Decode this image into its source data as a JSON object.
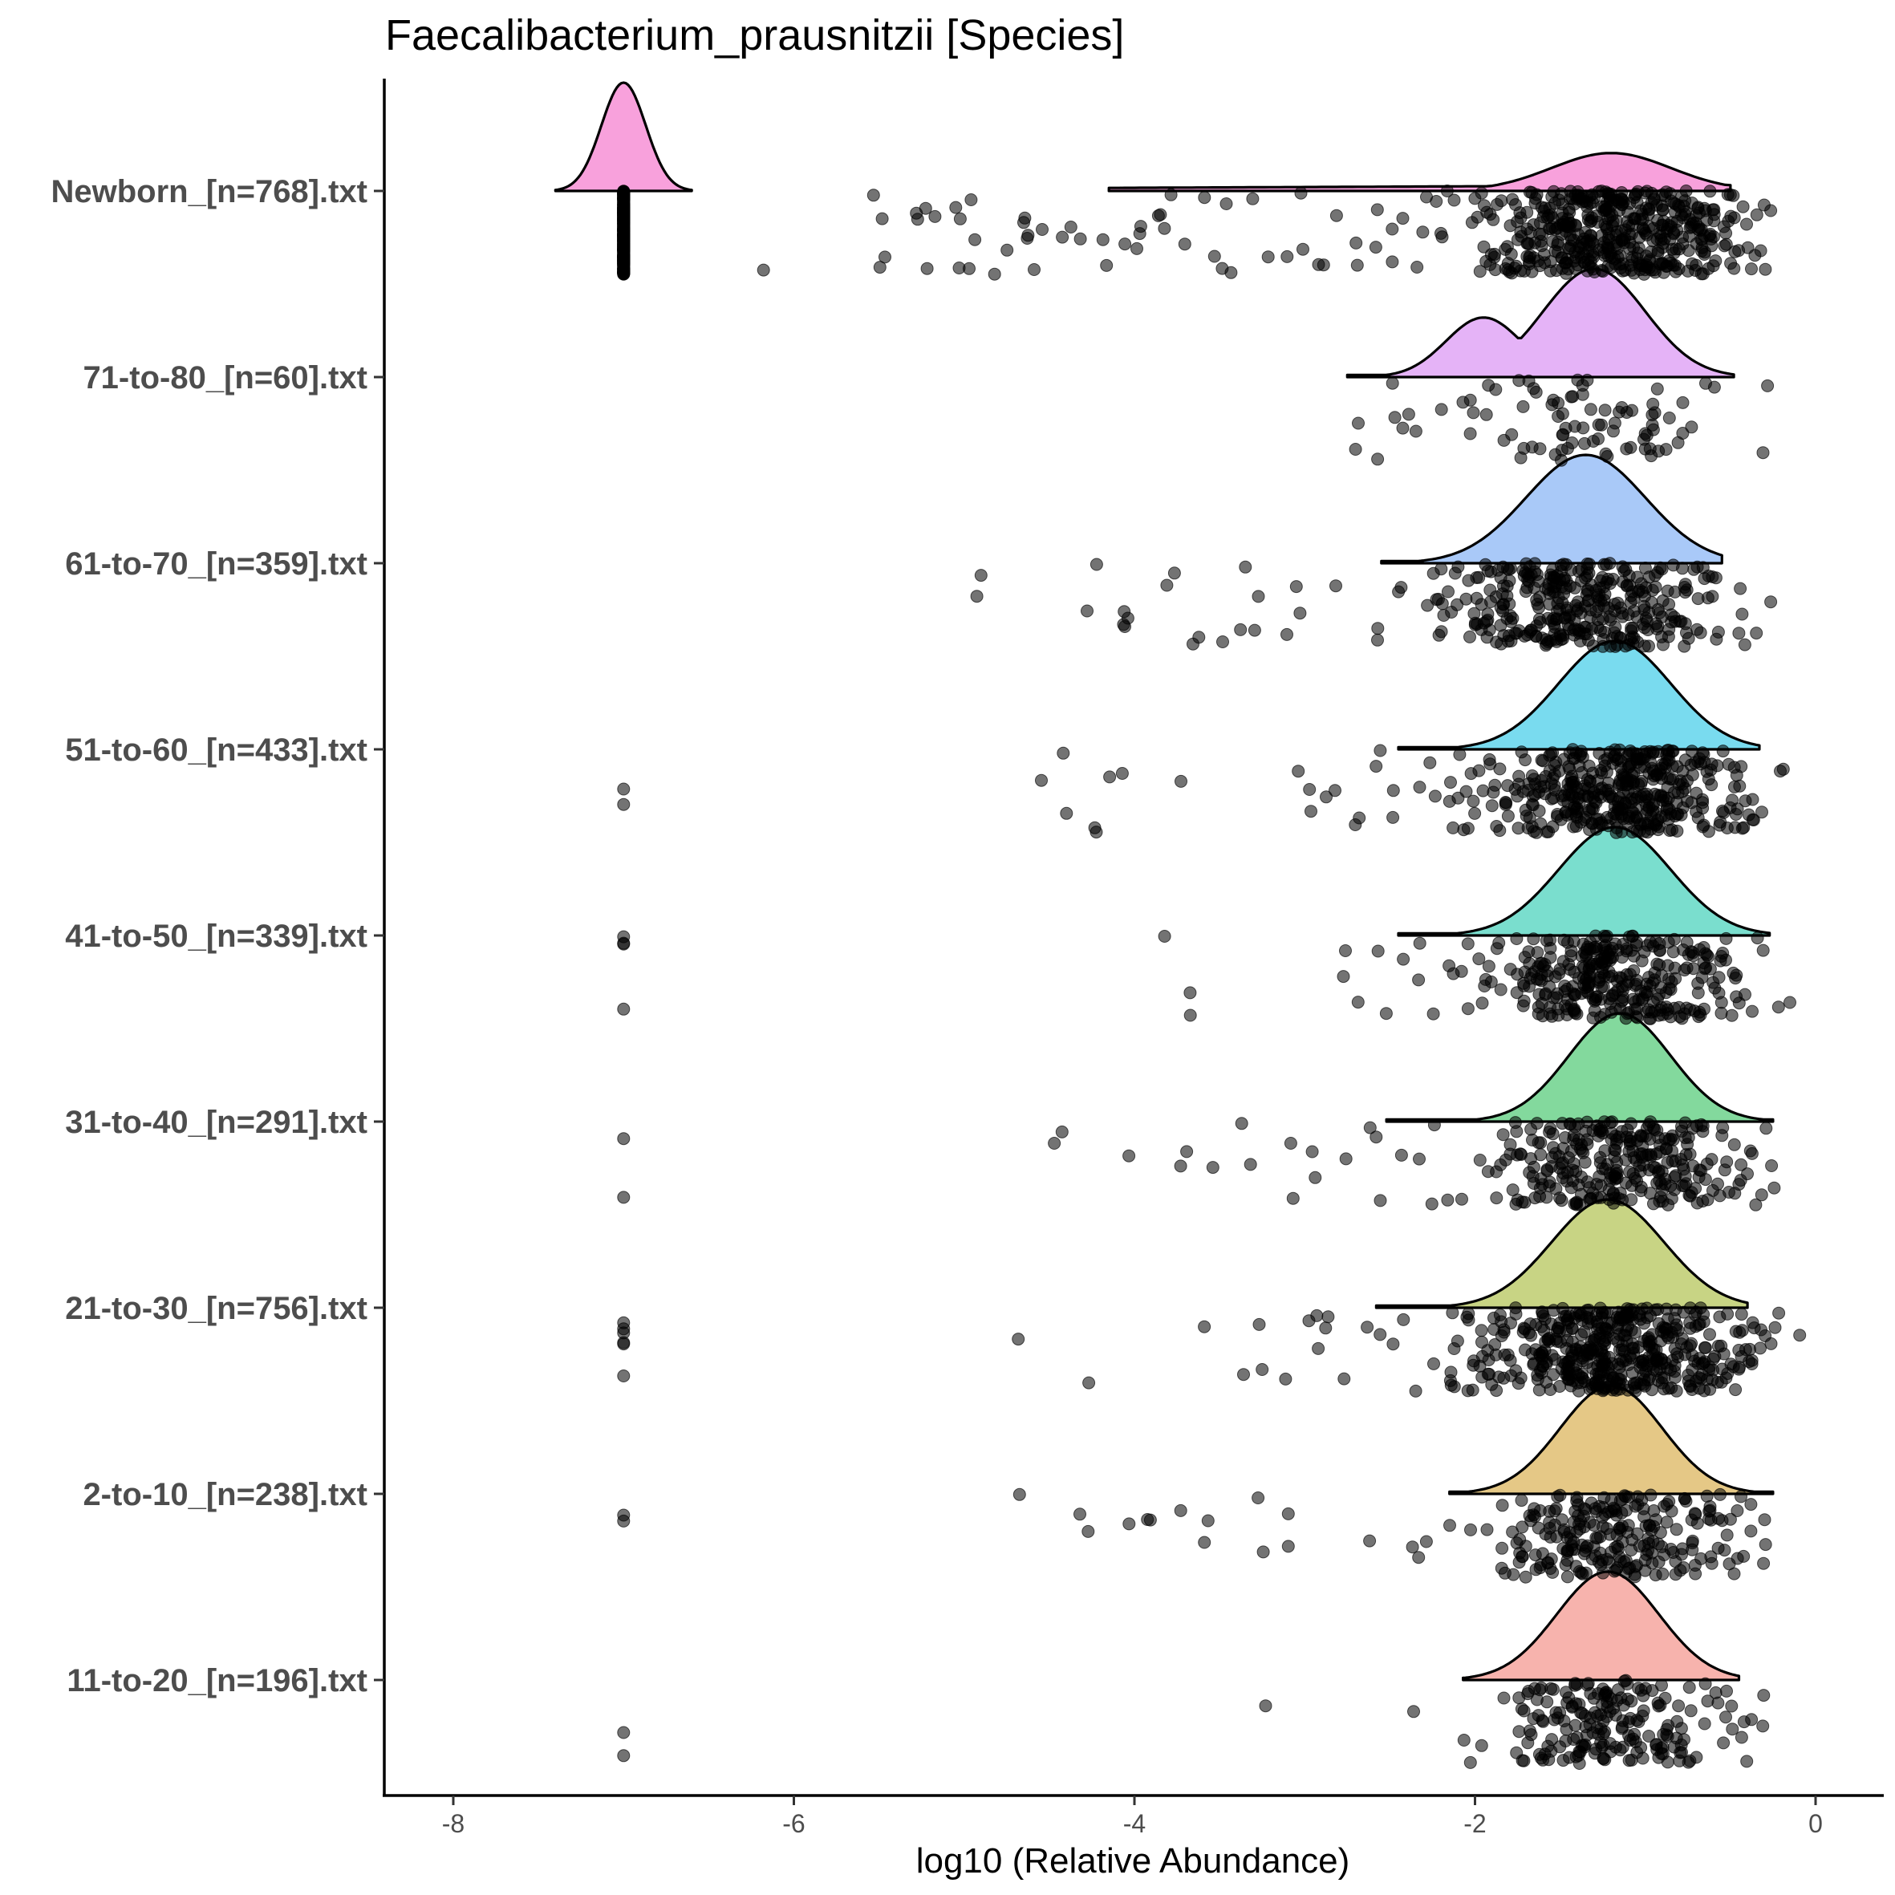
{
  "chart_data": {
    "type": "ridgeline-jitter",
    "title": "Faecalibacterium_prausnitzii [Species]",
    "xlabel": "log10 (Relative Abundance)",
    "ylabel": "",
    "xlim": [
      -8.4,
      0.4
    ],
    "x_ticks": [
      -8,
      -6,
      -4,
      -2,
      0
    ],
    "x_tick_labels": [
      "-8",
      "-6",
      "-4",
      "-2",
      "0"
    ],
    "zero_value": -7,
    "categories": [
      "Newborn_[n=768].txt",
      "71-to-80_[n=60].txt",
      "61-to-70_[n=359].txt",
      "51-to-60_[n=433].txt",
      "41-to-50_[n=339].txt",
      "31-to-40_[n=291].txt",
      "21-to-30_[n=756].txt",
      "2-to-10_[n=238].txt",
      "11-to-20_[n=196].txt"
    ],
    "series": [
      {
        "name": "Newborn_[n=768].txt",
        "n": 768,
        "color": "#f8a1dc",
        "density": {
          "main_peak": -1.2,
          "main_sd": 0.35,
          "x_range": [
            -4.15,
            -0.5
          ],
          "zero_spike": true,
          "zero_spike_range": [
            -7.4,
            -6.6
          ]
        },
        "zero_count": 420,
        "points": [
          -6.2,
          -5.5,
          -5.5,
          -5.45,
          -5.25,
          -5.25,
          -5.2,
          -5.05,
          -5.0,
          -4.95,
          -4.8,
          -4.75,
          -4.65,
          -4.6,
          -4.6,
          -4.55,
          -4.4,
          -4.35,
          -4.3,
          -4.2,
          -4.15,
          -4.05,
          -4.0,
          -3.95,
          -3.85,
          -3.8,
          -3.7,
          -3.6,
          -3.5,
          -3.45,
          -3.3,
          -3.2,
          -3.1,
          -3.0,
          -2.9,
          -2.8,
          -2.7,
          -2.6,
          -2.5,
          -2.4,
          -2.3,
          -2.2,
          -2.1,
          -2.0,
          -1.9,
          -1.8,
          -1.7,
          -1.6,
          -1.5,
          -1.4,
          -1.3,
          -1.2,
          -1.1,
          -1.0,
          -0.9,
          -0.8,
          -0.7,
          -0.6,
          -0.5,
          -0.4,
          -0.3
        ]
      },
      {
        "name": "71-to-80_[n=60].txt",
        "n": 60,
        "color": "#e5b3f7",
        "density": {
          "main_peak": -1.3,
          "main_sd": 0.3,
          "x_range": [
            -2.75,
            -0.48
          ],
          "shoulder": -1.95
        },
        "zero_count": 0,
        "points": [
          -2.7,
          -2.55,
          -2.5,
          -2.4,
          -2.35,
          -2.2,
          -2.05,
          -2.0,
          -1.95,
          -1.9,
          -1.85,
          -1.7,
          -1.6,
          -1.5,
          -1.4,
          -1.35,
          -1.3,
          -1.2,
          -1.1,
          -1.0,
          -0.95,
          -0.85,
          -0.75,
          -0.3
        ]
      },
      {
        "name": "61-to-70_[n=359].txt",
        "n": 359,
        "color": "#a9c9f8",
        "density": {
          "main_peak": -1.35,
          "main_sd": 0.35,
          "x_range": [
            -2.55,
            -0.55
          ]
        },
        "zero_count": 0,
        "points": [
          -4.9,
          -4.25,
          -4.05,
          -4.05,
          -3.8,
          -3.75,
          -3.65,
          -3.5,
          -3.35,
          -3.3,
          -3.1,
          -3.05,
          -3.0,
          -2.85,
          -2.6,
          -2.45,
          -2.3,
          -2.2,
          -2.1,
          -2.0,
          -1.9,
          -1.8,
          -1.7,
          -1.6,
          -1.5,
          -1.4,
          -1.3,
          -1.2,
          -1.1,
          -1.0,
          -0.9,
          -0.8,
          -0.7,
          -0.6,
          -0.45,
          -0.25
        ]
      },
      {
        "name": "51-to-60_[n=433].txt",
        "n": 433,
        "color": "#79dbef",
        "density": {
          "main_peak": -1.18,
          "main_sd": 0.33,
          "x_range": [
            -2.45,
            -0.33
          ]
        },
        "zero_count": 2,
        "points": [
          -4.55,
          -4.4,
          -4.25,
          -4.15,
          -4.1,
          -3.75,
          -3.05,
          -3.0,
          -2.95,
          -2.85,
          -2.7,
          -2.55,
          -2.45,
          -2.35,
          -2.25,
          -2.15,
          -2.05,
          -1.95,
          -1.85,
          -1.75,
          -1.65,
          -1.55,
          -1.45,
          -1.35,
          -1.25,
          -1.15,
          -1.05,
          -0.95,
          -0.85,
          -0.75,
          -0.65,
          -0.55,
          -0.45,
          -0.35,
          -0.2
        ]
      },
      {
        "name": "41-to-50_[n=339].txt",
        "n": 339,
        "color": "#7adece",
        "density": {
          "main_peak": -1.18,
          "main_sd": 0.33,
          "x_range": [
            -2.45,
            -0.27
          ]
        },
        "zero_count": 4,
        "points": [
          -3.85,
          -3.7,
          -2.75,
          -2.7,
          -2.55,
          -2.45,
          -2.35,
          -2.25,
          -2.15,
          -2.05,
          -1.95,
          -1.85,
          -1.75,
          -1.65,
          -1.55,
          -1.45,
          -1.35,
          -1.25,
          -1.15,
          -1.05,
          -0.95,
          -0.85,
          -0.75,
          -0.65,
          -0.55,
          -0.45,
          -0.35,
          -0.15
        ]
      },
      {
        "name": "31-to-40_[n=291].txt",
        "n": 291,
        "color": "#83d99d",
        "density": {
          "main_peak": -1.15,
          "main_sd": 0.3,
          "x_range": [
            -2.52,
            -0.25
          ]
        },
        "zero_count": 2,
        "points": [
          -4.45,
          -4.0,
          -3.7,
          -3.55,
          -3.35,
          -3.05,
          -2.95,
          -2.75,
          -2.6,
          -2.55,
          -2.45,
          -2.35,
          -2.25,
          -2.15,
          -2.05,
          -1.95,
          -1.85,
          -1.75,
          -1.65,
          -1.55,
          -1.45,
          -1.35,
          -1.25,
          -1.15,
          -1.05,
          -0.95,
          -0.85,
          -0.75,
          -0.65,
          -0.55,
          -0.45,
          -0.25
        ]
      },
      {
        "name": "21-to-30_[n=756].txt",
        "n": 756,
        "color": "#c8d484",
        "density": {
          "main_peak": -1.22,
          "main_sd": 0.33,
          "x_range": [
            -2.58,
            -0.4
          ]
        },
        "zero_count": 6,
        "points": [
          -4.65,
          -4.25,
          -3.6,
          -3.35,
          -3.25,
          -3.1,
          -3.0,
          -2.95,
          -2.85,
          -2.75,
          -2.65,
          -2.55,
          -2.45,
          -2.35,
          -2.25,
          -2.15,
          -2.05,
          -1.95,
          -1.85,
          -1.75,
          -1.65,
          -1.55,
          -1.45,
          -1.35,
          -1.25,
          -1.15,
          -1.05,
          -0.95,
          -0.85,
          -0.75,
          -0.65,
          -0.55,
          -0.45,
          -0.35,
          -0.25,
          -0.1
        ]
      },
      {
        "name": "2-to-10_[n=238].txt",
        "n": 238,
        "color": "#e5c886",
        "density": {
          "main_peak": -1.2,
          "main_sd": 0.3,
          "x_range": [
            -2.15,
            -0.25
          ]
        },
        "zero_count": 2,
        "points": [
          -4.65,
          -4.3,
          -4.0,
          -3.9,
          -3.75,
          -3.6,
          -3.25,
          -3.1,
          -2.6,
          -2.4,
          -2.3,
          -2.15,
          -2.05,
          -1.95,
          -1.85,
          -1.75,
          -1.65,
          -1.55,
          -1.45,
          -1.35,
          -1.25,
          -1.15,
          -1.05,
          -0.95,
          -0.85,
          -0.75,
          -0.65,
          -0.55,
          -0.45,
          -0.35,
          -0.3
        ]
      },
      {
        "name": "11-to-20_[n=196].txt",
        "n": 196,
        "color": "#f7b3ad",
        "density": {
          "main_peak": -1.22,
          "main_sd": 0.3,
          "x_range": [
            -2.07,
            -0.45
          ]
        },
        "zero_count": 2,
        "points": [
          -3.2,
          -2.35,
          -2.05,
          -1.95,
          -1.85,
          -1.75,
          -1.65,
          -1.55,
          -1.45,
          -1.35,
          -1.25,
          -1.15,
          -1.05,
          -0.95,
          -0.85,
          -0.75,
          -0.65,
          -0.55,
          -0.45,
          -0.3
        ]
      }
    ]
  }
}
